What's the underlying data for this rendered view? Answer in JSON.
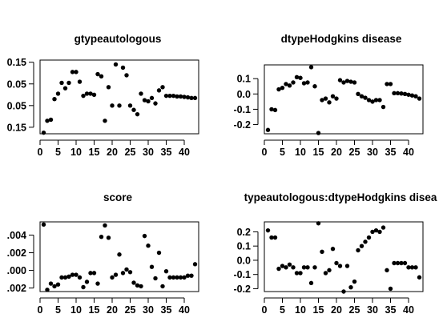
{
  "chart_data": [
    {
      "type": "scatter",
      "title": "gtypeautologous",
      "xlim": [
        0,
        44
      ],
      "ylim": [
        -0.18,
        0.16
      ],
      "x_ticks": [
        0,
        5,
        10,
        15,
        20,
        25,
        30,
        35,
        40
      ],
      "y_ticks": [
        {
          "value": 0.15,
          "label": "0.15"
        },
        {
          "value": 0.05,
          "label": "0.05"
        },
        {
          "value": -0.05,
          "label": "0.05"
        },
        {
          "value": -0.15,
          "label": "0.15"
        }
      ],
      "x": [
        1,
        2,
        3,
        4,
        5,
        6,
        7,
        8,
        9,
        10,
        11,
        12,
        13,
        14,
        15,
        16,
        17,
        18,
        19,
        20,
        21,
        22,
        23,
        24,
        25,
        26,
        27,
        28,
        29,
        30,
        31,
        32,
        33,
        34,
        35,
        36,
        37,
        38,
        39,
        40,
        41,
        42,
        43
      ],
      "y": [
        -0.175,
        -0.12,
        -0.115,
        -0.02,
        0.005,
        0.055,
        0.03,
        0.055,
        0.105,
        0.105,
        0.06,
        -0.005,
        0.005,
        0.005,
        0,
        0.095,
        0.085,
        -0.12,
        0.035,
        -0.05,
        0.14,
        -0.05,
        0.125,
        0.09,
        -0.05,
        -0.07,
        -0.09,
        0.005,
        -0.025,
        -0.03,
        -0.015,
        -0.04,
        0.02,
        0.035,
        -0.005,
        -0.005,
        -0.005,
        -0.008,
        -0.008,
        -0.01,
        -0.012,
        -0.015,
        -0.015
      ]
    },
    {
      "type": "scatter",
      "title": "dtypeHodgkins disease",
      "xlim": [
        0,
        44
      ],
      "ylim": [
        -0.26,
        0.19
      ],
      "x_ticks": [
        0,
        5,
        10,
        15,
        20,
        25,
        30,
        35,
        40
      ],
      "y_ticks": [
        {
          "value": 0.1,
          "label": "0.1"
        },
        {
          "value": 0,
          "label": "0.0"
        },
        {
          "value": -0.1,
          "label": "-0.1"
        },
        {
          "value": -0.2,
          "label": "-0.2"
        }
      ],
      "x": [
        1,
        2,
        3,
        4,
        5,
        6,
        7,
        8,
        9,
        10,
        11,
        12,
        13,
        14,
        15,
        16,
        17,
        18,
        19,
        20,
        21,
        22,
        23,
        24,
        25,
        26,
        27,
        28,
        29,
        30,
        31,
        32,
        33,
        34,
        35,
        36,
        37,
        38,
        39,
        40,
        41,
        42,
        43
      ],
      "y": [
        -0.235,
        -0.1,
        -0.105,
        0.03,
        0.04,
        0.065,
        0.055,
        0.075,
        0.11,
        0.105,
        0.07,
        0.075,
        0.175,
        0.05,
        -0.255,
        -0.04,
        -0.03,
        -0.055,
        -0.015,
        -0.03,
        0.09,
        0.075,
        0.085,
        0.08,
        0.075,
        0,
        -0.015,
        -0.025,
        -0.04,
        -0.05,
        -0.04,
        -0.04,
        -0.085,
        0.065,
        0.065,
        0.005,
        0.005,
        0.003,
        0,
        -0.005,
        -0.01,
        -0.015,
        -0.03
      ]
    },
    {
      "type": "scatter",
      "title": "score",
      "xlim": [
        0,
        44
      ],
      "ylim": [
        -0.0024,
        0.0055
      ],
      "x_ticks": [
        0,
        5,
        10,
        15,
        20,
        25,
        30,
        35,
        40
      ],
      "y_ticks": [
        {
          "value": 0.004,
          "label": ".004"
        },
        {
          "value": 0.002,
          "label": ".002"
        },
        {
          "value": 0,
          "label": ".000"
        },
        {
          "value": -0.002,
          "label": ".002"
        }
      ],
      "x": [
        1,
        2,
        3,
        4,
        5,
        6,
        7,
        8,
        9,
        10,
        11,
        12,
        13,
        14,
        15,
        16,
        17,
        18,
        19,
        20,
        21,
        22,
        23,
        24,
        25,
        26,
        27,
        28,
        29,
        30,
        31,
        32,
        33,
        34,
        35,
        36,
        37,
        38,
        39,
        40,
        41,
        42,
        43
      ],
      "y": [
        0.0052,
        -0.0022,
        -0.0015,
        -0.0018,
        -0.0016,
        -0.0008,
        -0.0008,
        -0.0007,
        -0.0005,
        -0.0005,
        -0.0008,
        -0.0019,
        -0.0013,
        -0.0003,
        -0.0003,
        -0.0015,
        0.0038,
        0.0051,
        0.0037,
        -0.0008,
        -0.0005,
        0.0018,
        -0.0003,
        0.0001,
        -0.0002,
        -0.0014,
        -0.0017,
        -0.0018,
        0.0039,
        0.0028,
        0.0004,
        -0.0009,
        0.002,
        -0.0018,
        -0.0001,
        -0.0008,
        -0.0008,
        -0.0008,
        -0.0008,
        -0.0008,
        -0.0006,
        -0.0006,
        0.0007
      ]
    },
    {
      "type": "scatter",
      "title": "typeautologous:dtypeHodgkins disea",
      "xlim": [
        0,
        44
      ],
      "ylim": [
        -0.22,
        0.27
      ],
      "x_ticks": [
        0,
        5,
        10,
        15,
        20,
        25,
        30,
        35,
        40
      ],
      "y_ticks": [
        {
          "value": 0.2,
          "label": "0.2"
        },
        {
          "value": 0.1,
          "label": "0.1"
        },
        {
          "value": 0,
          "label": "0.0"
        },
        {
          "value": -0.1,
          "label": "-0.1"
        },
        {
          "value": -0.2,
          "label": "-0.2"
        }
      ],
      "x": [
        1,
        2,
        3,
        4,
        5,
        6,
        7,
        8,
        9,
        10,
        11,
        12,
        13,
        14,
        15,
        16,
        17,
        18,
        19,
        20,
        21,
        22,
        23,
        24,
        25,
        26,
        27,
        28,
        29,
        30,
        31,
        32,
        33,
        34,
        35,
        36,
        37,
        38,
        39,
        40,
        41,
        42,
        43
      ],
      "y": [
        0.21,
        0.16,
        0.16,
        -0.06,
        -0.04,
        -0.05,
        -0.03,
        -0.05,
        -0.09,
        -0.09,
        -0.05,
        -0.05,
        -0.16,
        -0.05,
        0.26,
        0.06,
        -0.09,
        -0.07,
        0.08,
        -0.02,
        -0.04,
        -0.22,
        -0.04,
        -0.19,
        -0.15,
        0.07,
        0.1,
        0.13,
        0.16,
        0.2,
        0.21,
        0.2,
        0.23,
        -0.07,
        -0.2,
        -0.02,
        -0.02,
        -0.02,
        -0.02,
        -0.05,
        -0.05,
        -0.05,
        -0.12
      ]
    }
  ]
}
